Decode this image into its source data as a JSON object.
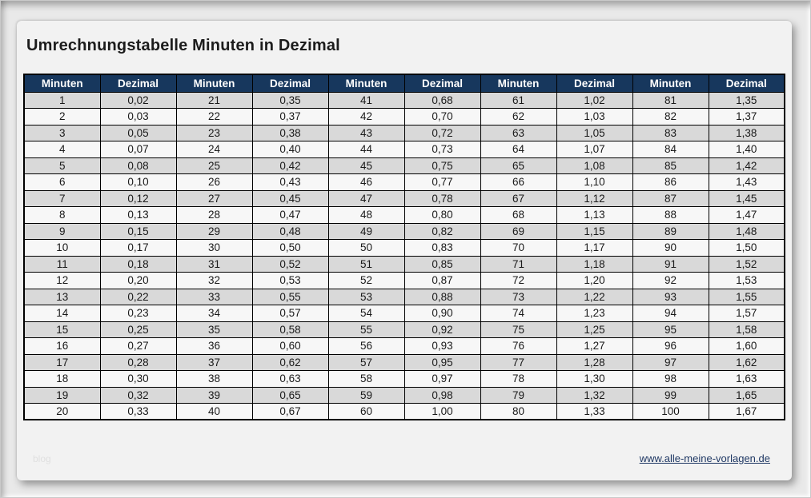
{
  "page": {
    "title": "Umrechnungstabelle Minuten in Dezimal"
  },
  "table": {
    "headers": [
      "Minuten",
      "Dezimal",
      "Minuten",
      "Dezimal",
      "Minuten",
      "Dezimal",
      "Minuten",
      "Dezimal",
      "Minuten",
      "Dezimal"
    ],
    "rows": [
      [
        "1",
        "0,02",
        "21",
        "0,35",
        "41",
        "0,68",
        "61",
        "1,02",
        "81",
        "1,35"
      ],
      [
        "2",
        "0,03",
        "22",
        "0,37",
        "42",
        "0,70",
        "62",
        "1,03",
        "82",
        "1,37"
      ],
      [
        "3",
        "0,05",
        "23",
        "0,38",
        "43",
        "0,72",
        "63",
        "1,05",
        "83",
        "1,38"
      ],
      [
        "4",
        "0,07",
        "24",
        "0,40",
        "44",
        "0,73",
        "64",
        "1,07",
        "84",
        "1,40"
      ],
      [
        "5",
        "0,08",
        "25",
        "0,42",
        "45",
        "0,75",
        "65",
        "1,08",
        "85",
        "1,42"
      ],
      [
        "6",
        "0,10",
        "26",
        "0,43",
        "46",
        "0,77",
        "66",
        "1,10",
        "86",
        "1,43"
      ],
      [
        "7",
        "0,12",
        "27",
        "0,45",
        "47",
        "0,78",
        "67",
        "1,12",
        "87",
        "1,45"
      ],
      [
        "8",
        "0,13",
        "28",
        "0,47",
        "48",
        "0,80",
        "68",
        "1,13",
        "88",
        "1,47"
      ],
      [
        "9",
        "0,15",
        "29",
        "0,48",
        "49",
        "0,82",
        "69",
        "1,15",
        "89",
        "1,48"
      ],
      [
        "10",
        "0,17",
        "30",
        "0,50",
        "50",
        "0,83",
        "70",
        "1,17",
        "90",
        "1,50"
      ],
      [
        "11",
        "0,18",
        "31",
        "0,52",
        "51",
        "0,85",
        "71",
        "1,18",
        "91",
        "1,52"
      ],
      [
        "12",
        "0,20",
        "32",
        "0,53",
        "52",
        "0,87",
        "72",
        "1,20",
        "92",
        "1,53"
      ],
      [
        "13",
        "0,22",
        "33",
        "0,55",
        "53",
        "0,88",
        "73",
        "1,22",
        "93",
        "1,55"
      ],
      [
        "14",
        "0,23",
        "34",
        "0,57",
        "54",
        "0,90",
        "74",
        "1,23",
        "94",
        "1,57"
      ],
      [
        "15",
        "0,25",
        "35",
        "0,58",
        "55",
        "0,92",
        "75",
        "1,25",
        "95",
        "1,58"
      ],
      [
        "16",
        "0,27",
        "36",
        "0,60",
        "56",
        "0,93",
        "76",
        "1,27",
        "96",
        "1,60"
      ],
      [
        "17",
        "0,28",
        "37",
        "0,62",
        "57",
        "0,95",
        "77",
        "1,28",
        "97",
        "1,62"
      ],
      [
        "18",
        "0,30",
        "38",
        "0,63",
        "58",
        "0,97",
        "78",
        "1,30",
        "98",
        "1,63"
      ],
      [
        "19",
        "0,32",
        "39",
        "0,65",
        "59",
        "0,98",
        "79",
        "1,32",
        "99",
        "1,65"
      ],
      [
        "20",
        "0,33",
        "40",
        "0,67",
        "60",
        "1,00",
        "80",
        "1,33",
        "100",
        "1,67"
      ]
    ]
  },
  "footer": {
    "watermark": "blog",
    "link": "www.alle-meine-vorlagen.de"
  },
  "colors": {
    "header_bg": "#17375D",
    "header_text": "#FFFFFF",
    "row_odd_bg": "#D9D9D9",
    "row_even_bg": "#F7F7F7",
    "link": "#1F3864"
  }
}
